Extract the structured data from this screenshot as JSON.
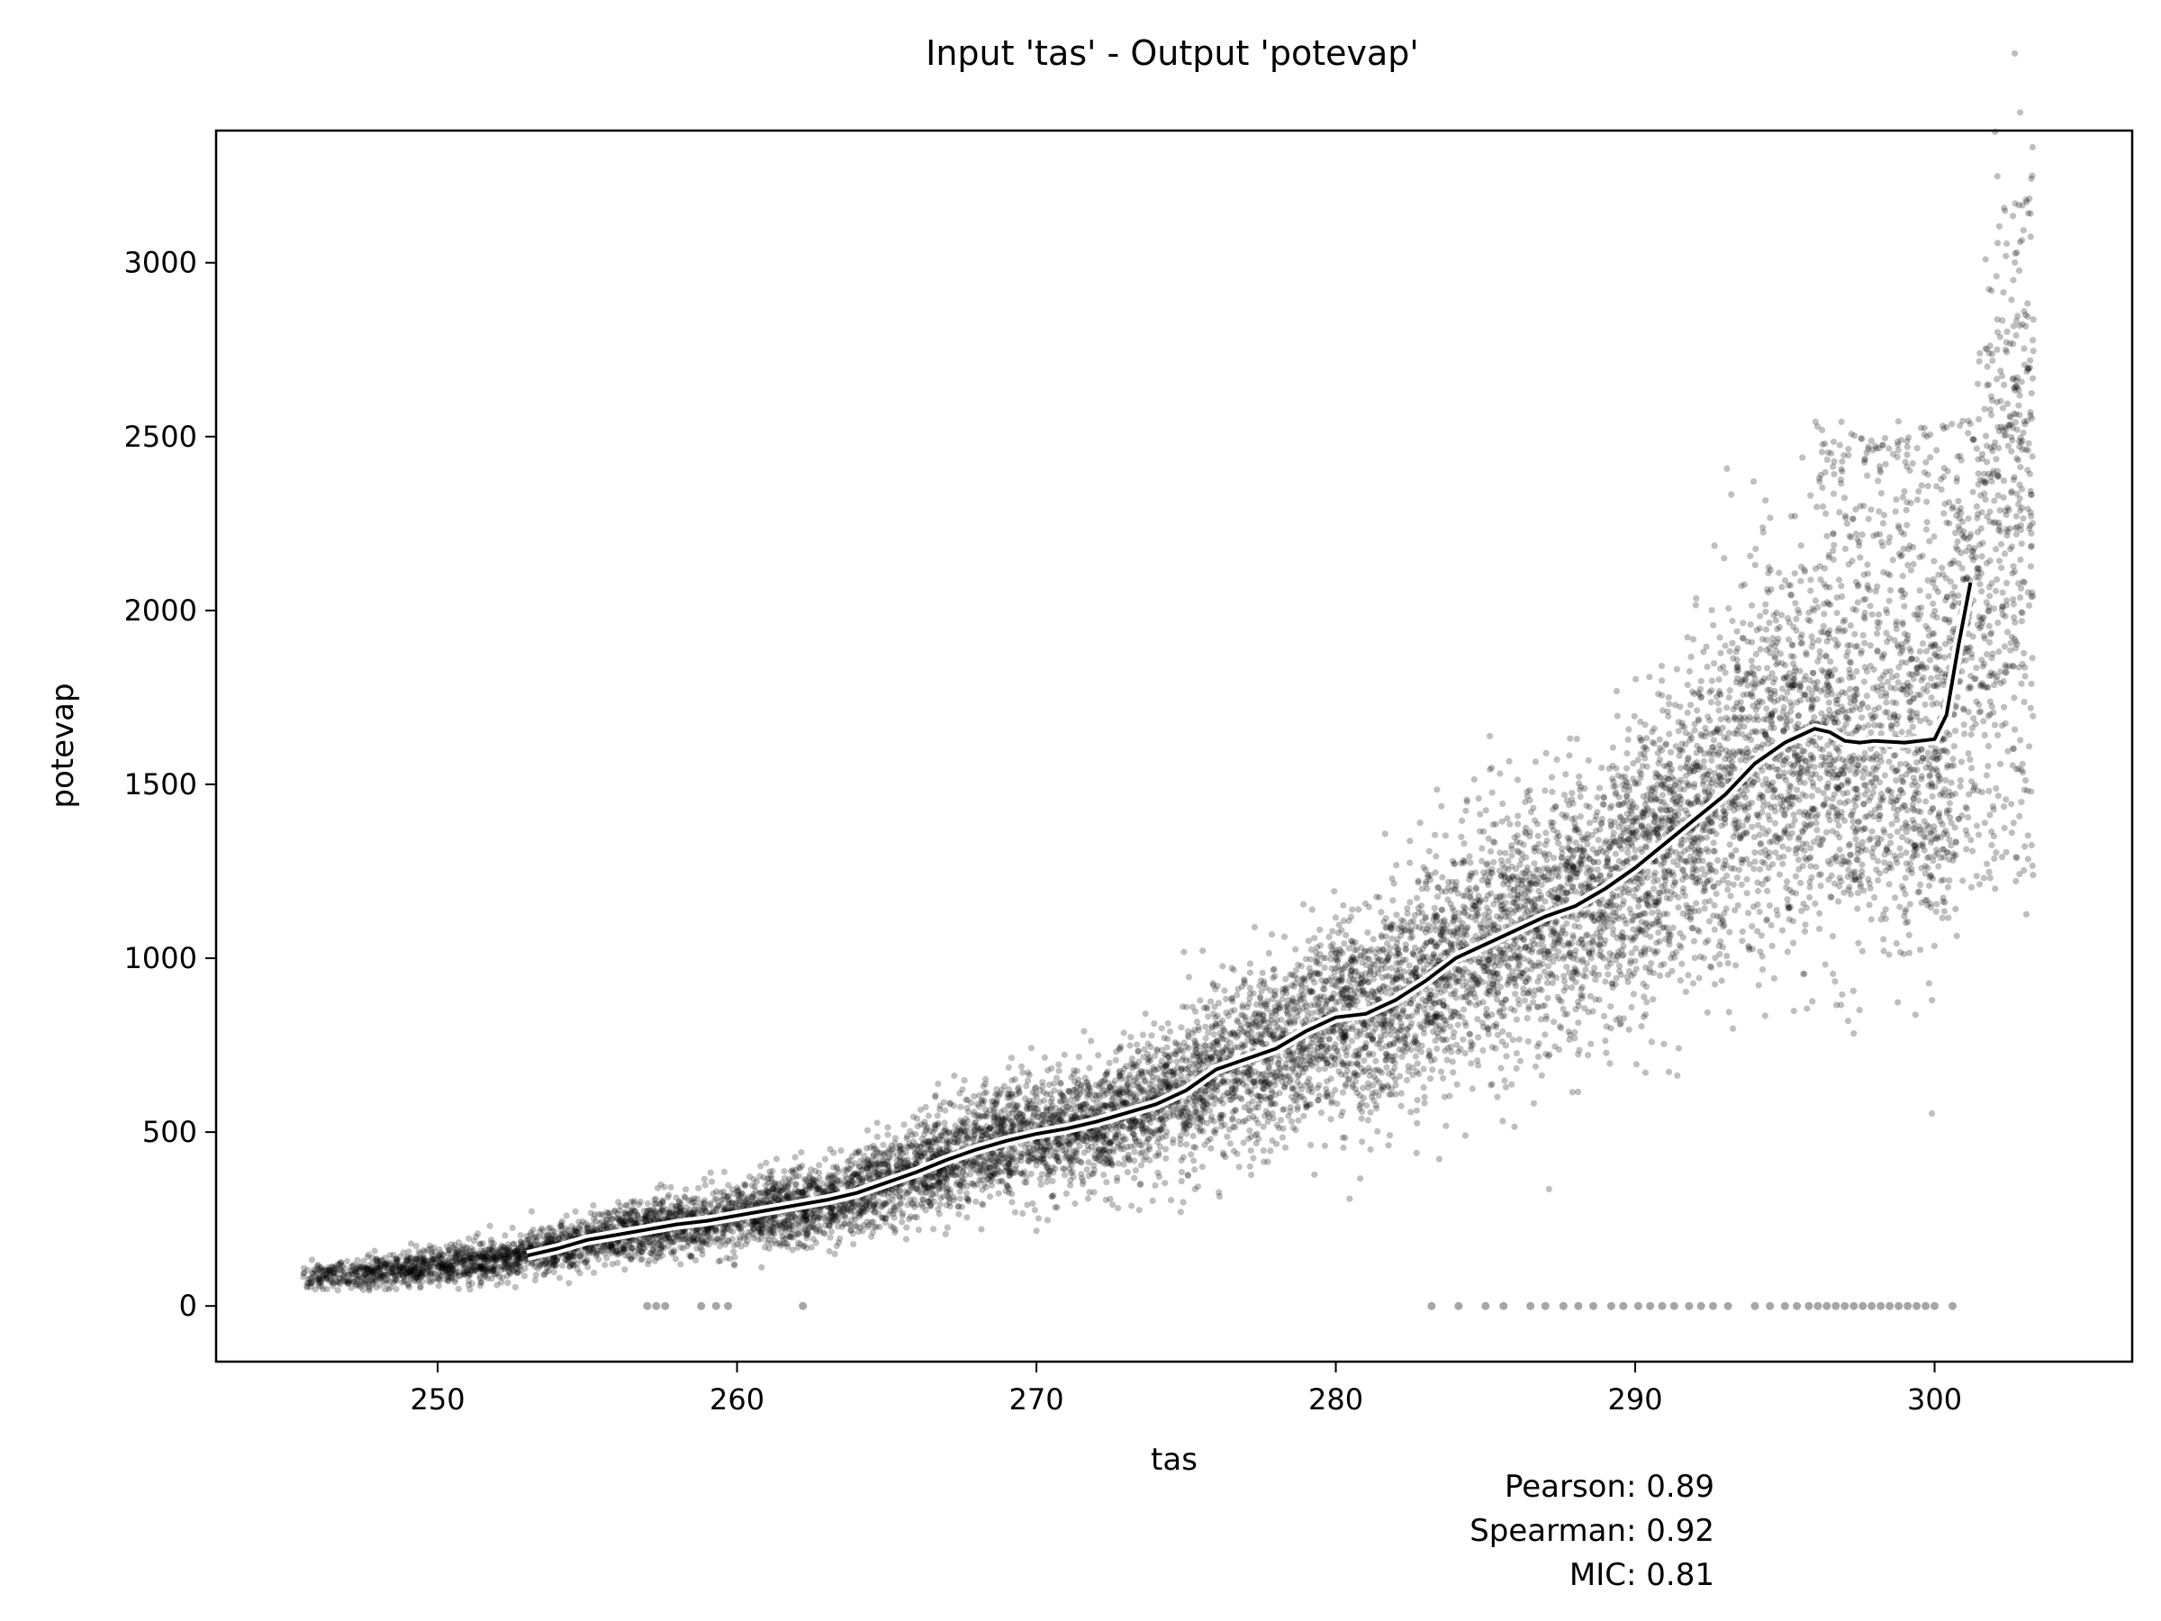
{
  "chart_data": {
    "type": "scatter",
    "title": "Input 'tas' - Output 'potevap'",
    "xlabel": "tas",
    "ylabel": "potevap",
    "xlim": [
      242.6,
      306.6
    ],
    "ylim": [
      -160,
      3380
    ],
    "x_ticks": [
      250,
      260,
      270,
      280,
      290,
      300
    ],
    "y_ticks": [
      0,
      500,
      1000,
      1500,
      2000,
      2500,
      3000
    ],
    "grid": false,
    "point_color": "#000000",
    "point_opacity": 0.25,
    "trend_line": {
      "color": "#000000",
      "outline_color": "#ffffff",
      "x": [
        253.0,
        254.0,
        255.0,
        256.0,
        257.0,
        258.0,
        259.0,
        260.0,
        261.0,
        262.0,
        263.0,
        264.0,
        265.0,
        266.0,
        267.0,
        268.0,
        269.0,
        270.0,
        271.0,
        272.0,
        273.0,
        274.0,
        275.0,
        276.0,
        277.0,
        278.0,
        279.0,
        280.0,
        281.0,
        282.0,
        283.0,
        284.0,
        285.0,
        286.0,
        287.0,
        288.0,
        289.0,
        290.0,
        291.0,
        292.0,
        293.0,
        294.0,
        295.0,
        296.0,
        296.5,
        297.0,
        297.5,
        298.0,
        299.0,
        300.0,
        300.4,
        300.8,
        301.2
      ],
      "y": [
        145,
        165,
        190,
        205,
        220,
        235,
        245,
        260,
        275,
        290,
        305,
        325,
        355,
        385,
        420,
        450,
        475,
        495,
        510,
        530,
        555,
        580,
        620,
        680,
        710,
        740,
        790,
        830,
        840,
        880,
        935,
        1000,
        1040,
        1080,
        1120,
        1150,
        1200,
        1260,
        1330,
        1400,
        1470,
        1560,
        1620,
        1660,
        1650,
        1625,
        1620,
        1625,
        1620,
        1630,
        1700,
        1900,
        2080
      ]
    },
    "zero_points_x": [
      257.0,
      257.3,
      257.6,
      258.8,
      259.3,
      259.7,
      262.2,
      283.2,
      284.1,
      285.0,
      285.6,
      286.5,
      287.0,
      287.6,
      288.1,
      288.6,
      289.2,
      289.6,
      290.1,
      290.5,
      290.9,
      291.3,
      291.8,
      292.2,
      292.6,
      293.1,
      294.0,
      294.5,
      295.0,
      295.4,
      295.8,
      296.1,
      296.4,
      296.7,
      297.0,
      297.3,
      297.6,
      297.9,
      298.2,
      298.5,
      298.8,
      299.1,
      299.4,
      299.7,
      300.0,
      300.6
    ],
    "annotations": [
      "Pearson: 0.89",
      "Spearman: 0.92",
      "MIC: 0.81"
    ]
  }
}
